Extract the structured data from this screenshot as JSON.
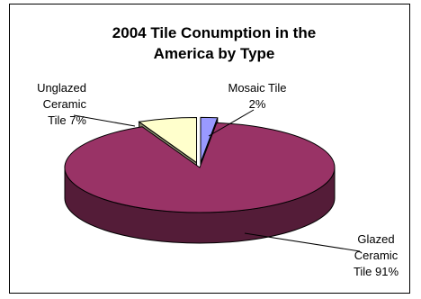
{
  "chart_data": {
    "type": "pie",
    "title_lines": [
      "2004 Tile Conumption in the",
      "America by Type"
    ],
    "slices": [
      {
        "name": "Glazed Ceramic Tile",
        "value": 91,
        "color": "#993366",
        "label_lines": [
          "Glazed",
          "Ceramic",
          "Tile  91%"
        ]
      },
      {
        "name": "Unglazed Ceramic Tile",
        "value": 7,
        "color": "#FFFFCC",
        "label_lines": [
          "Unglazed",
          "Ceramic",
          "Tile  7%"
        ]
      },
      {
        "name": "Mosaic Tile",
        "value": 2,
        "color": "#9999FF",
        "label_lines": [
          "Mosaic Tile",
          "2%"
        ]
      }
    ],
    "legend": "none",
    "exploded": true,
    "three_d": true
  }
}
